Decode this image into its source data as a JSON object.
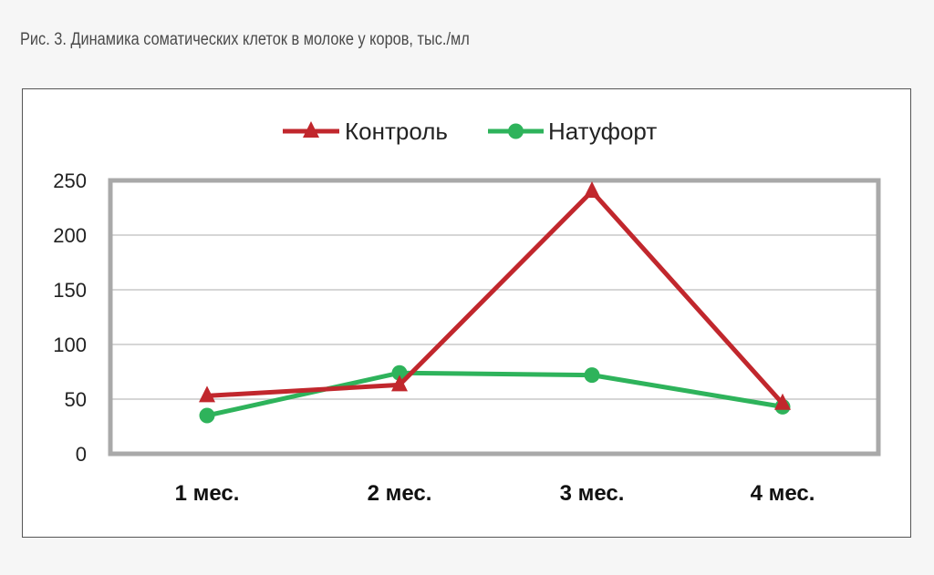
{
  "caption": "Рис. 3. Динамика соматических клеток в молоке у коров, тыс./мл",
  "chart_data": {
    "type": "line",
    "categories": [
      "1 мес.",
      "2 мес.",
      "3 мес.",
      "4 мес."
    ],
    "series": [
      {
        "name": "Контроль",
        "values": [
          53,
          63,
          240,
          46
        ],
        "color": "#c1272d",
        "marker": "triangle"
      },
      {
        "name": "Натуфорт",
        "values": [
          35,
          74,
          72,
          43
        ],
        "color": "#2eb35b",
        "marker": "circle"
      }
    ],
    "ylim": [
      0,
      250
    ],
    "yticks": [
      0,
      50,
      100,
      150,
      200,
      250
    ],
    "grid": true,
    "legend": "top-center",
    "title": "",
    "xlabel": "",
    "ylabel": ""
  }
}
